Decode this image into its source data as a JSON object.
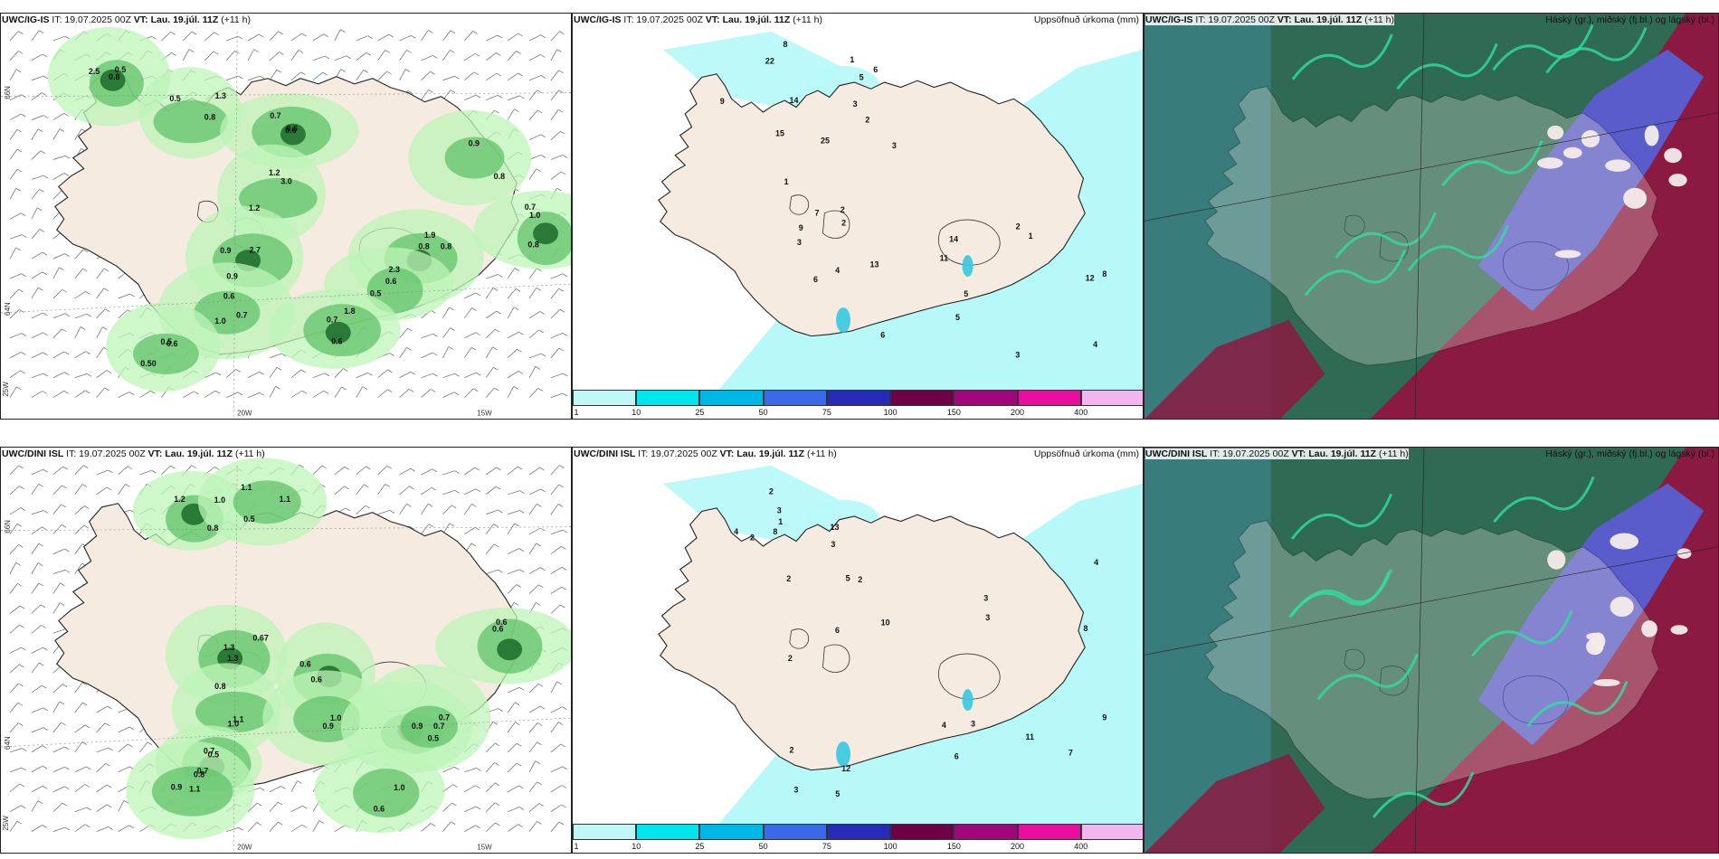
{
  "colors": {
    "land": "#f6ebe0",
    "precip_light": "#bdf4b8",
    "precip_mid": "#62c36a",
    "precip_dark": "#1c6a2a",
    "accum_base": "#b7f8f8",
    "cloud_low": "#8b1a42",
    "cloud_mid": "#5a5ccc",
    "cloud_high": "#2f6a55",
    "colorbar": [
      "#bff7f7",
      "#00e5ee",
      "#00b8e8",
      "#3a68e6",
      "#2a2ab8",
      "#6e0047",
      "#a0067a",
      "#ea0c9f",
      "#f2b5ee"
    ]
  },
  "panels": [
    {
      "id": "ig-wind",
      "header_model": "UWC/IG-IS",
      "header_it": " IT: 19.07.2025 00Z ",
      "header_vt_label": "VT:",
      "header_vt": " Lau. 19.júl. 11Z",
      "header_rest": " (+11 h)",
      "right_title": "",
      "coords": {
        "lat66": "66N",
        "lat64": "64N",
        "lon25": "25W",
        "lon20": "20W",
        "lon15": "15W"
      },
      "labels": [
        {
          "t": "0.8"
        },
        {
          "t": "0.5"
        },
        {
          "t": "0.6"
        },
        {
          "t": "1.2"
        },
        {
          "t": "2.7"
        },
        {
          "t": "1.0"
        },
        {
          "t": "1.9"
        },
        {
          "t": "2.3"
        },
        {
          "t": "1.8"
        },
        {
          "t": "0.6"
        },
        {
          "t": "0.7"
        },
        {
          "t": "0.8"
        },
        {
          "t": "2.5"
        },
        {
          "t": "1.3"
        },
        {
          "t": "0.6"
        },
        {
          "t": "3.0"
        },
        {
          "t": "0.9"
        },
        {
          "t": "0.6"
        },
        {
          "t": "0.8"
        },
        {
          "t": "0.5"
        },
        {
          "t": "0.7"
        },
        {
          "t": "0.50"
        },
        {
          "t": "0.8"
        },
        {
          "t": "0.9"
        },
        {
          "t": "0.5"
        },
        {
          "t": "0.8"
        },
        {
          "t": "0.7"
        },
        {
          "t": "1.2"
        },
        {
          "t": "0.9"
        },
        {
          "t": "0.7"
        },
        {
          "t": "0.8"
        },
        {
          "t": "0.6"
        },
        {
          "t": "0.6"
        },
        {
          "t": "0.5"
        },
        {
          "t": "1.0"
        }
      ]
    },
    {
      "id": "ig-accum",
      "header_model": "UWC/IG-IS",
      "header_it": " IT: 19.07.2025 00Z ",
      "header_vt_label": "VT:",
      "header_vt": " Lau. 19.júl. 11Z",
      "header_rest": " (+11 h)",
      "right_title": "Uppsöfnuð úrkoma (mm)",
      "labels": [
        {
          "t": "2"
        },
        {
          "t": "3"
        },
        {
          "t": "1"
        },
        {
          "t": "5"
        },
        {
          "t": "22"
        },
        {
          "t": "25"
        },
        {
          "t": "6"
        },
        {
          "t": "9"
        },
        {
          "t": "14"
        },
        {
          "t": "15"
        },
        {
          "t": "8"
        },
        {
          "t": "2"
        },
        {
          "t": "1"
        },
        {
          "t": "3"
        },
        {
          "t": "5"
        },
        {
          "t": "7"
        },
        {
          "t": "6"
        },
        {
          "t": "3"
        },
        {
          "t": "4"
        },
        {
          "t": "9"
        },
        {
          "t": "11"
        },
        {
          "t": "14"
        },
        {
          "t": "12"
        },
        {
          "t": "13"
        },
        {
          "t": "2"
        },
        {
          "t": "8"
        },
        {
          "t": "3"
        },
        {
          "t": "6"
        },
        {
          "t": "5"
        },
        {
          "t": "4"
        },
        {
          "t": "2"
        },
        {
          "t": "1"
        }
      ],
      "colorbar_ticks": [
        "1",
        "10",
        "25",
        "50",
        "75",
        "100",
        "150",
        "200",
        "400"
      ]
    },
    {
      "id": "ig-cloud",
      "header_model": "UWC/IG-IS",
      "header_it": " IT: 19.07.2025 00Z ",
      "header_vt_label": "VT:",
      "header_vt": " Lau. 19.júl. 11Z",
      "header_rest": " (+11 h)",
      "right_title": "Háský (gr.), miðský (fj.bl.) og lágský (bl.)"
    },
    {
      "id": "dini-wind",
      "header_model": "UWC/DINI ISL",
      "header_it": " IT: 19.07.2025 00Z ",
      "header_vt_label": "VT:",
      "header_vt": " Lau. 19.júl. 11Z",
      "header_rest": " (+11 h)",
      "right_title": "",
      "coords": {
        "lat66": "66N",
        "lat64": "64N",
        "lon25": "25W",
        "lon20": "20W",
        "lon15": "15W"
      },
      "labels": [
        {
          "t": "1.2"
        },
        {
          "t": "1.1"
        },
        {
          "t": "1.3"
        },
        {
          "t": "0.8"
        },
        {
          "t": "0.7"
        },
        {
          "t": "0.8"
        },
        {
          "t": "0.6"
        },
        {
          "t": "1.0"
        },
        {
          "t": "0.5"
        },
        {
          "t": "0.7"
        },
        {
          "t": "0.6"
        },
        {
          "t": "1.0"
        },
        {
          "t": "0.8"
        },
        {
          "t": "1.1"
        },
        {
          "t": "1.3"
        },
        {
          "t": "1.0"
        },
        {
          "t": "0.7"
        },
        {
          "t": "1.1"
        },
        {
          "t": "0.6"
        },
        {
          "t": "0.9"
        },
        {
          "t": "0.7"
        },
        {
          "t": "0.9"
        },
        {
          "t": "0.6"
        },
        {
          "t": "0.6"
        },
        {
          "t": "1.0"
        },
        {
          "t": "0.5"
        },
        {
          "t": "0.67"
        },
        {
          "t": "1.1"
        },
        {
          "t": "0.5"
        },
        {
          "t": "0.9"
        }
      ]
    },
    {
      "id": "dini-accum",
      "header_model": "UWC/DINI ISL",
      "header_it": " IT: 19.07.2025 00Z ",
      "header_vt_label": "VT:",
      "header_vt": " Lau. 19.júl. 11Z",
      "header_rest": " (+11 h)",
      "right_title": "Uppsöfnuð úrkoma (mm)",
      "labels": [
        {
          "t": "3"
        },
        {
          "t": "2"
        },
        {
          "t": "3"
        },
        {
          "t": "2"
        },
        {
          "t": "13"
        },
        {
          "t": "8"
        },
        {
          "t": "2"
        },
        {
          "t": "1"
        },
        {
          "t": "5"
        },
        {
          "t": "4"
        },
        {
          "t": "2"
        },
        {
          "t": "6"
        },
        {
          "t": "3"
        },
        {
          "t": "4"
        },
        {
          "t": "7"
        },
        {
          "t": "11"
        },
        {
          "t": "10"
        },
        {
          "t": "12"
        },
        {
          "t": "9"
        },
        {
          "t": "8"
        },
        {
          "t": "6"
        },
        {
          "t": "3"
        },
        {
          "t": "2"
        },
        {
          "t": "5"
        },
        {
          "t": "2"
        },
        {
          "t": "3"
        },
        {
          "t": "4"
        },
        {
          "t": "3"
        }
      ],
      "colorbar_ticks": [
        "1",
        "10",
        "25",
        "50",
        "75",
        "100",
        "150",
        "200",
        "400"
      ]
    },
    {
      "id": "dini-cloud",
      "header_model": "UWC/DINI ISL",
      "header_it": " IT: 19.07.2025 00Z ",
      "header_vt_label": "VT:",
      "header_vt": " Lau. 19.júl. 11Z",
      "header_rest": " (+11 h)",
      "right_title": "Háský (gr.), miðský (fj.bl.) og lágský (bl.)"
    }
  ]
}
